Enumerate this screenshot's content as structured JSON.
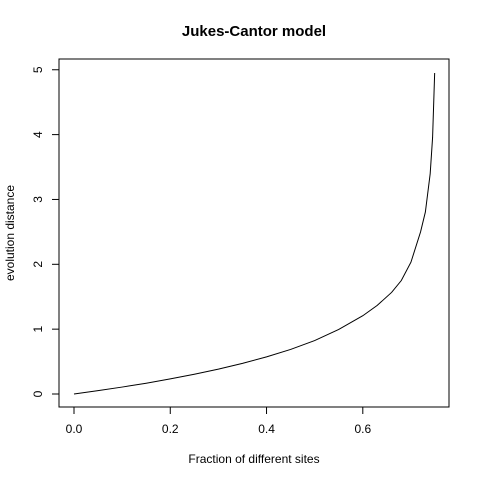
{
  "chart_data": {
    "type": "line",
    "title": "Jukes-Cantor model",
    "xlabel": "Fraction of different sites",
    "ylabel": "evolution distance",
    "xlim": [
      0,
      0.75
    ],
    "ylim": [
      0,
      4.95
    ],
    "x_ticks": [
      0.0,
      0.2,
      0.4,
      0.6
    ],
    "x_tick_labels": [
      "0.0",
      "0.2",
      "0.4",
      "0.6"
    ],
    "y_ticks": [
      0,
      1,
      2,
      3,
      4,
      5
    ],
    "y_tick_labels": [
      "0",
      "1",
      "2",
      "3",
      "4",
      "5"
    ],
    "grid": false,
    "series": [
      {
        "x": [
          0.0,
          0.05,
          0.1,
          0.15,
          0.2,
          0.25,
          0.3,
          0.35,
          0.4,
          0.45,
          0.5,
          0.55,
          0.6,
          0.63,
          0.66,
          0.68,
          0.7,
          0.72,
          0.73,
          0.74,
          0.745,
          0.748,
          0.7493
        ],
        "y": [
          0.0,
          0.052,
          0.107,
          0.166,
          0.233,
          0.304,
          0.383,
          0.473,
          0.572,
          0.687,
          0.824,
          0.996,
          1.207,
          1.366,
          1.568,
          1.75,
          2.032,
          2.5,
          2.806,
          3.398,
          3.956,
          4.65,
          4.95
        ]
      }
    ]
  }
}
